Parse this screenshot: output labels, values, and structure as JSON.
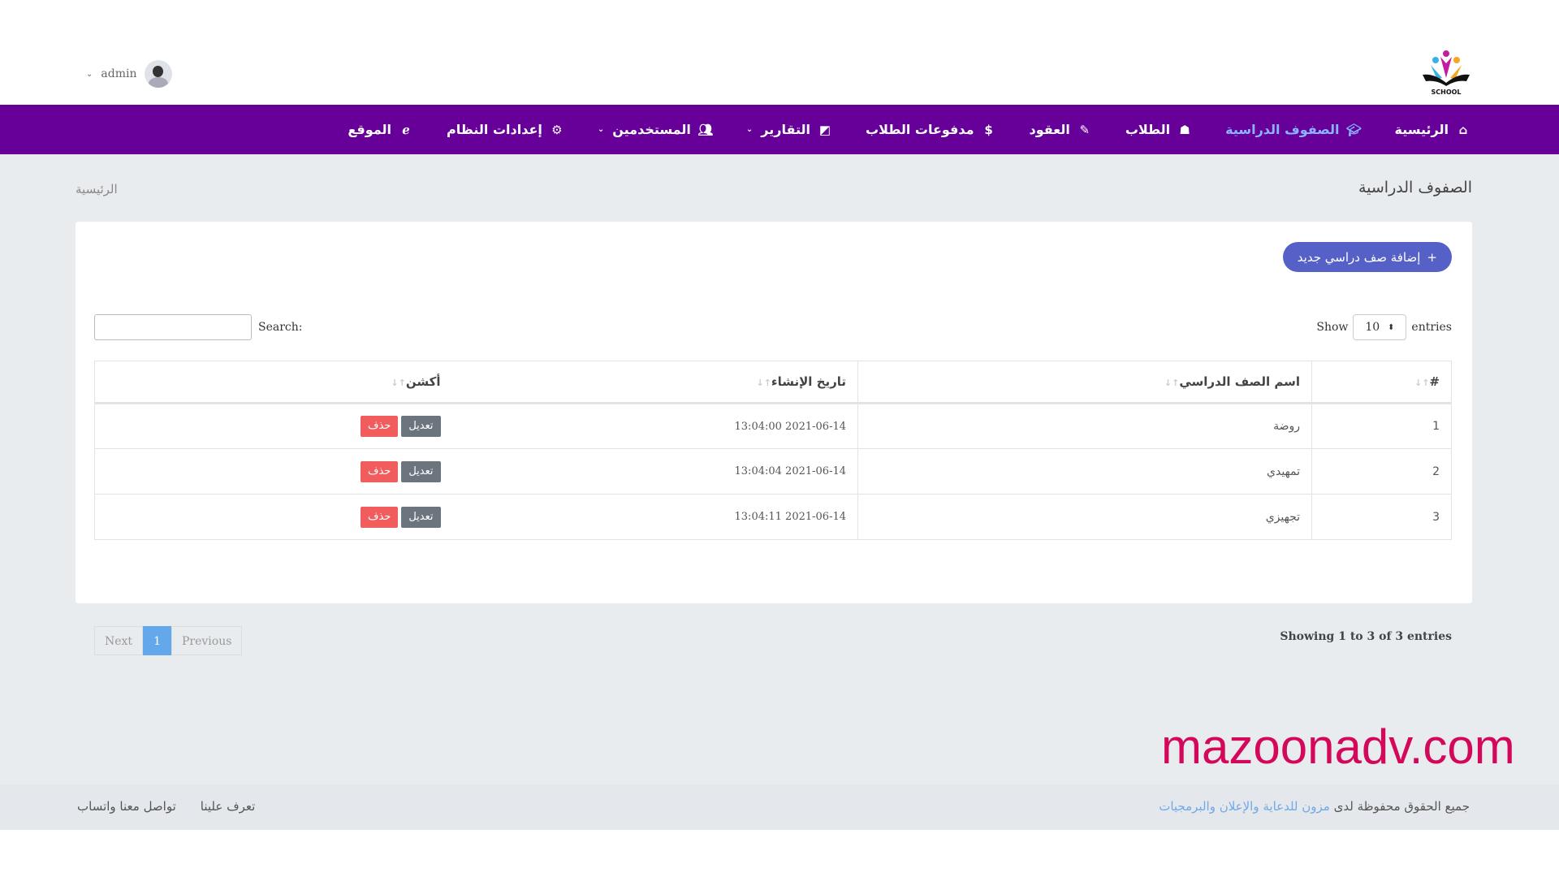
{
  "header": {
    "user": "admin",
    "logo_text": "SCHOOL"
  },
  "nav": [
    {
      "label": "الرئيسية",
      "icon": "home-icon"
    },
    {
      "label": "الصفوف الدراسية",
      "icon": "graduation-cap-icon",
      "active": true
    },
    {
      "label": "الطلاب",
      "icon": "user-graduate-icon"
    },
    {
      "label": "العقود",
      "icon": "file-signature-icon"
    },
    {
      "label": "مدفوعات الطلاب",
      "icon": "dollar-icon"
    },
    {
      "label": "التقارير",
      "icon": "edit-square-icon",
      "dropdown": true
    },
    {
      "label": "المستخدمين",
      "icon": "users-icon",
      "dropdown": true
    },
    {
      "label": "إعدادات النظام",
      "icon": "gear-icon"
    },
    {
      "label": "الموقع",
      "icon": "internet-explorer-icon"
    }
  ],
  "page": {
    "title": "الصفوف الدراسية",
    "breadcrumb": "الرئيسية",
    "add_button": "إضافة صف دراسي جديد"
  },
  "table_controls": {
    "show": "Show",
    "entries": "entries",
    "length": "10",
    "search_label": "Search:",
    "search_value": ""
  },
  "table": {
    "headers": [
      "#",
      "اسم الصف الدراسي",
      "تاريخ الإنشاء",
      "أكشن"
    ],
    "rows": [
      {
        "num": "1",
        "name": "روضة",
        "date": "2021-06-14 13:04:00"
      },
      {
        "num": "2",
        "name": "تمهيدي",
        "date": "2021-06-14 13:04:04"
      },
      {
        "num": "3",
        "name": "تجهيزي",
        "date": "2021-06-14 13:04:11"
      }
    ],
    "edit_label": "تعديل",
    "delete_label": "حذف"
  },
  "pagination": {
    "previous": "Previous",
    "current": "1",
    "next": "Next",
    "info": "Showing 1 to 3 of 3 entries"
  },
  "watermark": "mazoonadv.com",
  "footer": {
    "copy_prefix": "جميع الحقوق محفوظة لدى",
    "copy_link": "مزون للدعاية والإعلان والبرمجيات",
    "links": [
      "تعرف علينا",
      "تواصل معنا واتساب"
    ]
  },
  "colors": {
    "nav": "#660099",
    "active": "#8ab4ff",
    "add": "#5561c6",
    "edit": "#6c757d",
    "delete": "#f15c5c",
    "watermark": "#d4085a"
  }
}
